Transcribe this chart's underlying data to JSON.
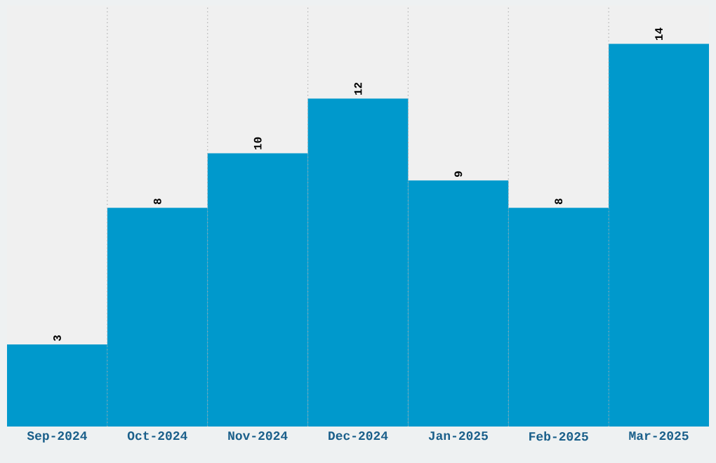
{
  "chart_data": {
    "type": "bar",
    "categories": [
      "Sep-2024",
      "Oct-2024",
      "Nov-2024",
      "Dec-2024",
      "Jan-2025",
      "Feb-2025",
      "Mar-2025"
    ],
    "values": [
      3,
      8,
      10,
      12,
      9,
      8,
      14
    ],
    "color": "#0099cc",
    "grid": "x",
    "data_labels": true
  }
}
